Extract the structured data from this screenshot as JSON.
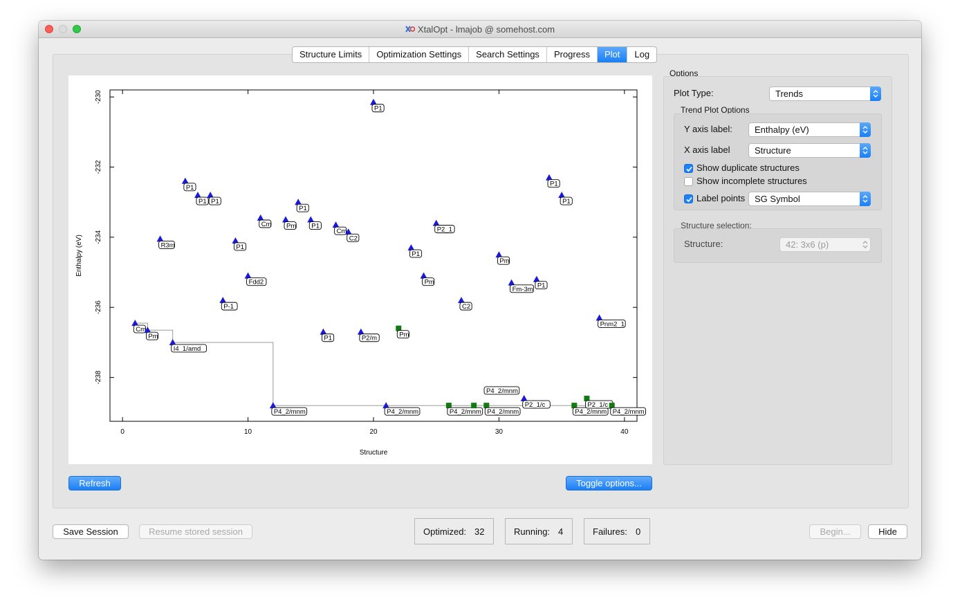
{
  "window": {
    "title": "XtalOpt - lmajob @ somehost.com"
  },
  "tabs": [
    {
      "label": "Structure Limits",
      "active": false
    },
    {
      "label": "Optimization Settings",
      "active": false
    },
    {
      "label": "Search Settings",
      "active": false
    },
    {
      "label": "Progress",
      "active": false
    },
    {
      "label": "Plot",
      "active": true
    },
    {
      "label": "Log",
      "active": false
    }
  ],
  "buttons": {
    "refresh": "Refresh",
    "toggle_options": "Toggle options...",
    "save_session": "Save Session",
    "resume_session": "Resume stored session",
    "begin": "Begin...",
    "hide": "Hide"
  },
  "options": {
    "group_label": "Options",
    "plot_type_label": "Plot Type:",
    "plot_type_value": "Trends",
    "trend_group_label": "Trend Plot Options",
    "y_axis_label_text": "Y axis label:",
    "y_axis_value": "Enthalpy (eV)",
    "x_axis_label_text": "X axis label",
    "x_axis_value": "Structure",
    "show_duplicates_label": "Show duplicate structures",
    "show_duplicates_checked": true,
    "show_incomplete_label": "Show incomplete structures",
    "show_incomplete_checked": false,
    "label_points_label": "Label points",
    "label_points_checked": true,
    "label_points_value": "SG Symbol",
    "structure_selection_label": "Structure selection:",
    "structure_label": "Structure:",
    "structure_value": "42: 3x6 (p)"
  },
  "status": {
    "optimized_label": "Optimized:",
    "optimized_value": "32",
    "running_label": "Running:",
    "running_value": "4",
    "failures_label": "Failures:",
    "failures_value": "0"
  },
  "chart_data": {
    "type": "scatter",
    "xlabel": "Structure",
    "ylabel": "Enthalpy (eV)",
    "xlim": [
      -1,
      41
    ],
    "ylim": [
      -239.25,
      -229.8
    ],
    "xticks": [
      0,
      10,
      20,
      30,
      40
    ],
    "yticks": [
      -230,
      -232,
      -234,
      -236,
      -238
    ],
    "grid": false,
    "colors": {
      "optimized": "#1a1adc",
      "duplicate": "#117a11",
      "trend_line": "#9a9a9a"
    },
    "series": [
      {
        "marker": "triangle",
        "points": [
          {
            "x": 1,
            "y": -236.45,
            "label": "Cm"
          },
          {
            "x": 2,
            "y": -236.65,
            "label": "Pm"
          },
          {
            "x": 3,
            "y": -234.05,
            "label": "R3m"
          },
          {
            "x": 4,
            "y": -237.0,
            "label": "I4_1/amd"
          },
          {
            "x": 5,
            "y": -232.4,
            "label": "P1"
          },
          {
            "x": 6,
            "y": -232.8,
            "label": "P1"
          },
          {
            "x": 7,
            "y": -232.8,
            "label": "P1"
          },
          {
            "x": 8,
            "y": -235.8,
            "label": "P-1"
          },
          {
            "x": 9,
            "y": -234.1,
            "label": "P1"
          },
          {
            "x": 10,
            "y": -235.1,
            "label": "Fdd2"
          },
          {
            "x": 11,
            "y": -233.45,
            "label": "Cm"
          },
          {
            "x": 12,
            "y": -238.8,
            "label": "P4_2/mnm"
          },
          {
            "x": 13,
            "y": -233.5,
            "label": "Pm"
          },
          {
            "x": 14,
            "y": -233.0,
            "label": "P1"
          },
          {
            "x": 15,
            "y": -233.5,
            "label": "P1"
          },
          {
            "x": 16,
            "y": -236.7,
            "label": "P1"
          },
          {
            "x": 17,
            "y": -233.65,
            "label": "Cm"
          },
          {
            "x": 18,
            "y": -233.85,
            "label": "C2"
          },
          {
            "x": 19,
            "y": -236.7,
            "label": "P2/m"
          },
          {
            "x": 20,
            "y": -230.15,
            "label": "P1"
          },
          {
            "x": 21,
            "y": -238.8,
            "label": "P4_2/mnm"
          },
          {
            "x": 23,
            "y": -234.3,
            "label": "P1"
          },
          {
            "x": 24,
            "y": -235.1,
            "label": "Pm"
          },
          {
            "x": 25,
            "y": -233.6,
            "label": "P2_1"
          },
          {
            "x": 27,
            "y": -235.8,
            "label": "C2"
          },
          {
            "x": 30,
            "y": -234.5,
            "label": "Pm"
          },
          {
            "x": 31,
            "y": -235.3,
            "label": "Fm-3m"
          },
          {
            "x": 32,
            "y": -238.6,
            "label": "P2_1/c"
          },
          {
            "x": 33,
            "y": -235.2,
            "label": "P1"
          },
          {
            "x": 34,
            "y": -232.3,
            "label": "P1"
          },
          {
            "x": 35,
            "y": -232.8,
            "label": "P1"
          },
          {
            "x": 38,
            "y": -236.3,
            "label": "Pnm2_1"
          }
        ]
      },
      {
        "marker": "square",
        "points": [
          {
            "x": 22,
            "y": -236.6,
            "label": "Pm"
          },
          {
            "x": 26,
            "y": -238.8,
            "label": "P4_2/mnm"
          },
          {
            "x": 28,
            "y": -238.8,
            "label": ""
          },
          {
            "x": 29,
            "y": -238.8,
            "label": "P4_2/mnm"
          },
          {
            "x": 36,
            "y": -238.8,
            "label": "P4_2/mnm"
          },
          {
            "x": 37,
            "y": -238.6,
            "label": "P2_1/c"
          },
          {
            "x": 39,
            "y": -238.8,
            "label": "P4_2/mnm"
          }
        ]
      }
    ],
    "extra_labels": [
      {
        "x": 30,
        "y": -238.5,
        "label": "P4_2/mnm"
      }
    ],
    "trend_line": [
      {
        "x": 1,
        "y": -236.45
      },
      {
        "x": 2,
        "y": -236.45
      },
      {
        "x": 2,
        "y": -236.65
      },
      {
        "x": 4,
        "y": -236.65
      },
      {
        "x": 4,
        "y": -237.0
      },
      {
        "x": 12,
        "y": -237.0
      },
      {
        "x": 12,
        "y": -238.8
      },
      {
        "x": 39,
        "y": -238.8
      }
    ]
  }
}
